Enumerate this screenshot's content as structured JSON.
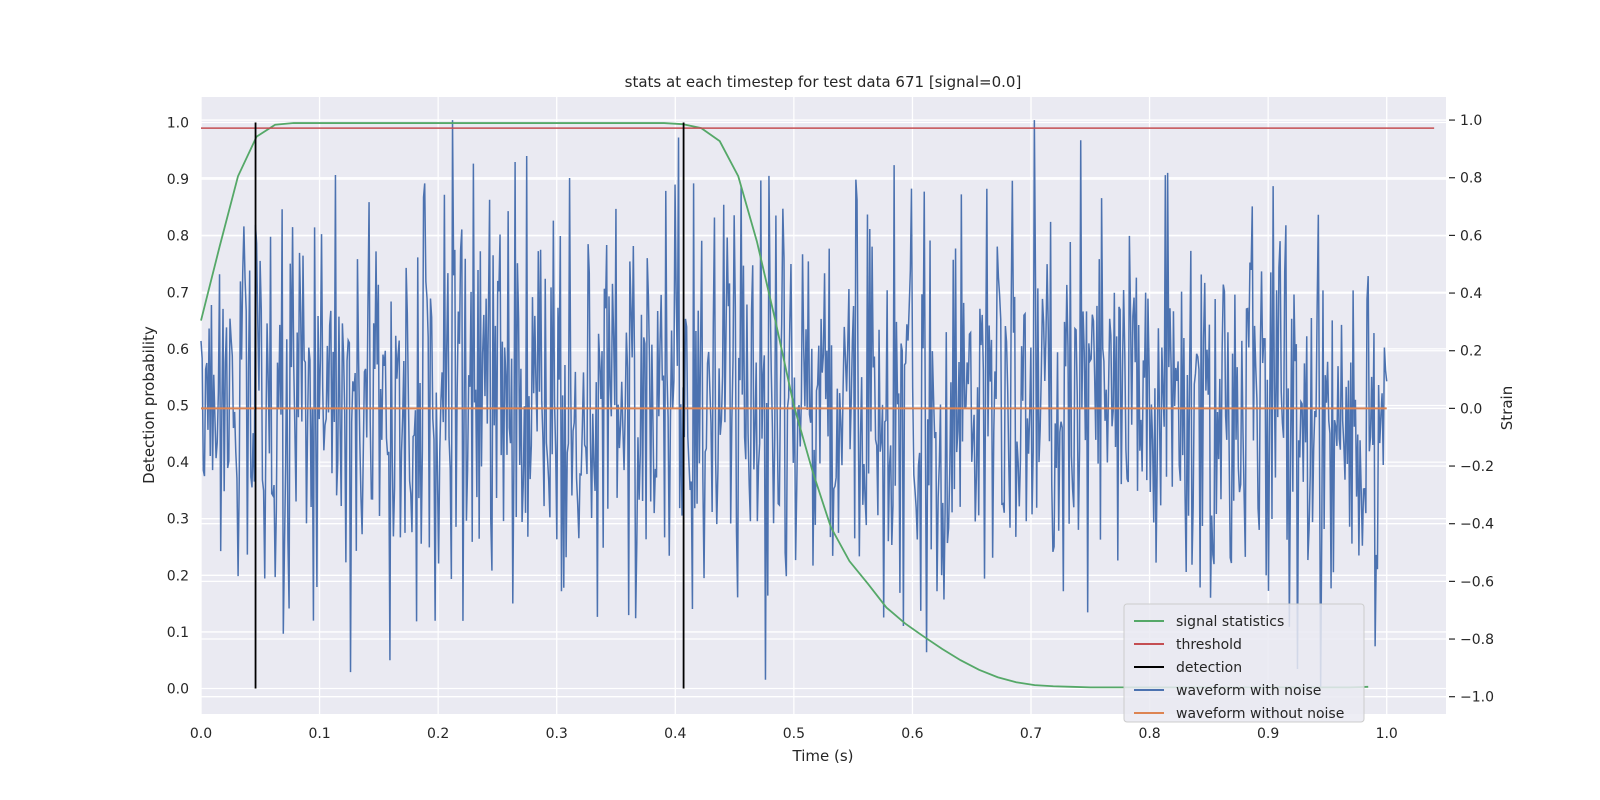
{
  "chart_data": {
    "type": "line",
    "title": "stats at each timestep for test data 671 [signal=0.0]",
    "xlabel": "Time (s)",
    "ylabel_left": "Detection probability",
    "ylabel_right": "Strain",
    "xlim": [
      0.0,
      1.05
    ],
    "ylim_left": [
      -0.045,
      1.045
    ],
    "ylim_right": [
      -1.06,
      1.08
    ],
    "x_ticks": [
      "0.0",
      "0.1",
      "0.2",
      "0.3",
      "0.4",
      "0.5",
      "0.6",
      "0.7",
      "0.8",
      "0.9",
      "1.0"
    ],
    "y_left_ticks": [
      "0.0",
      "0.1",
      "0.2",
      "0.3",
      "0.4",
      "0.5",
      "0.6",
      "0.7",
      "0.8",
      "0.9",
      "1.0"
    ],
    "y_right_ticks": [
      "−1.0",
      "−0.8",
      "−0.6",
      "−0.4",
      "−0.2",
      "0.0",
      "0.2",
      "0.4",
      "0.6",
      "0.8",
      "1.0"
    ],
    "grid": true,
    "legend_position": "lower-right",
    "colors": {
      "signal_statistics": "#55a868",
      "threshold": "#c44e52",
      "detection": "#000000",
      "waveform_with_noise": "#4c72b0",
      "waveform_without_noise": "#dd8452",
      "plot_background": "#eaeaf2",
      "grid": "#ffffff"
    },
    "series": [
      {
        "name": "signal statistics",
        "axis": "left",
        "x": [
          0.0,
          0.0156,
          0.0312,
          0.0469,
          0.0625,
          0.0781,
          0.0938,
          0.1094,
          0.125,
          0.1406,
          0.1562,
          0.1719,
          0.1875,
          0.2031,
          0.2188,
          0.2344,
          0.25,
          0.2656,
          0.2812,
          0.2969,
          0.3125,
          0.3281,
          0.3438,
          0.3594,
          0.375,
          0.3906,
          0.4062,
          0.4219,
          0.4375,
          0.4531,
          0.4688,
          0.4844,
          0.5,
          0.5156,
          0.5312,
          0.5469,
          0.5625,
          0.5781,
          0.5938,
          0.6094,
          0.625,
          0.6406,
          0.6562,
          0.6719,
          0.6875,
          0.7031,
          0.7188,
          0.7344,
          0.75,
          0.7656,
          0.7812,
          0.7969,
          0.8125,
          0.8281,
          0.8438,
          0.8594,
          0.875,
          0.8906,
          0.9062,
          0.9219,
          0.9375,
          0.9531,
          0.9688,
          0.9844
        ],
        "values": [
          0.65,
          0.78,
          0.905,
          0.975,
          0.996,
          0.999,
          0.999,
          0.999,
          0.999,
          0.999,
          0.999,
          0.999,
          0.999,
          0.999,
          0.999,
          0.999,
          0.999,
          0.999,
          0.999,
          0.999,
          0.999,
          0.999,
          0.999,
          0.999,
          0.999,
          0.999,
          0.997,
          0.99,
          0.967,
          0.905,
          0.79,
          0.65,
          0.5,
          0.385,
          0.285,
          0.225,
          0.185,
          0.143,
          0.115,
          0.092,
          0.07,
          0.05,
          0.033,
          0.02,
          0.011,
          0.006,
          0.004,
          0.003,
          0.002,
          0.002,
          0.002,
          0.002,
          0.002,
          0.002,
          0.002,
          0.002,
          0.002,
          0.002,
          0.002,
          0.002,
          0.002,
          0.002,
          0.002,
          0.003
        ]
      },
      {
        "name": "threshold",
        "axis": "left",
        "x": [
          0.0,
          1.04
        ],
        "values": [
          0.99,
          0.99
        ]
      },
      {
        "name": "detection",
        "axis": "left",
        "vlines": [
          {
            "x": 0.046,
            "ymin": 0.0,
            "ymax": 1.0
          },
          {
            "x": 0.407,
            "ymin": 0.0,
            "ymax": 1.0
          }
        ]
      },
      {
        "name": "waveform with noise",
        "axis": "right",
        "x_start": 0.0,
        "x_end": 1.0,
        "n_points": 1024,
        "y_range": [
          -0.97,
          1.0
        ],
        "std_estimate": 0.36
      },
      {
        "name": "waveform without noise",
        "axis": "right",
        "x": [
          0.0,
          1.0
        ],
        "values": [
          0.0,
          0.0
        ]
      }
    ]
  }
}
